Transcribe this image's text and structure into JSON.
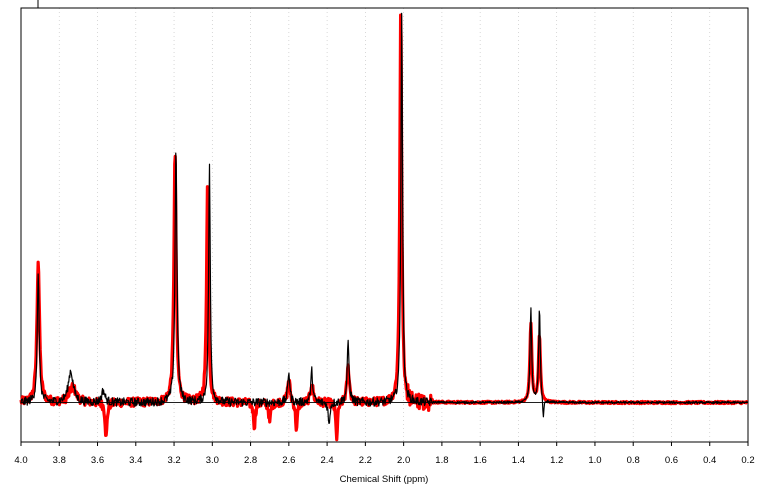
{
  "chart_data": {
    "type": "line",
    "title": "",
    "xlabel": "Chemical Shift (ppm)",
    "ylabel": "",
    "x_reversed": true,
    "xlim": [
      4.0,
      0.2
    ],
    "ylim": [
      -0.1,
      1.0
    ],
    "grid": "vertical dotted",
    "legend": "none",
    "x_ticks": [
      "4.0",
      "3.8",
      "3.6",
      "3.4",
      "3.2",
      "3.0",
      "2.8",
      "2.6",
      "2.4",
      "2.2",
      "2.0",
      "1.8",
      "1.6",
      "1.4",
      "1.2",
      "1.0",
      "0.8",
      "0.6",
      "0.4",
      "0.2"
    ],
    "series": [
      {
        "color": "#ff0000",
        "peaks": [
          {
            "x": 3.91,
            "y": 0.36,
            "w": 0.008
          },
          {
            "x": 3.73,
            "y": 0.04,
            "w": 0.02
          },
          {
            "x": 3.555,
            "y": -0.09,
            "w": 0.006
          },
          {
            "x": 3.195,
            "y": 0.63,
            "w": 0.007
          },
          {
            "x": 3.025,
            "y": 0.56,
            "w": 0.006
          },
          {
            "x": 2.78,
            "y": -0.06,
            "w": 0.006
          },
          {
            "x": 2.7,
            "y": -0.05,
            "w": 0.006
          },
          {
            "x": 2.6,
            "y": 0.06,
            "w": 0.008
          },
          {
            "x": 2.56,
            "y": -0.07,
            "w": 0.006
          },
          {
            "x": 2.48,
            "y": 0.05,
            "w": 0.008
          },
          {
            "x": 2.35,
            "y": -0.09,
            "w": 0.006
          },
          {
            "x": 2.29,
            "y": 0.09,
            "w": 0.008
          },
          {
            "x": 2.015,
            "y": 1.0,
            "w": 0.006
          },
          {
            "x": 1.335,
            "y": 0.2,
            "w": 0.006
          },
          {
            "x": 1.29,
            "y": 0.17,
            "w": 0.006
          }
        ]
      },
      {
        "color": "#000000",
        "peaks": [
          {
            "x": 3.91,
            "y": 0.32,
            "w": 0.006
          },
          {
            "x": 3.74,
            "y": 0.08,
            "w": 0.015
          },
          {
            "x": 3.57,
            "y": 0.03,
            "w": 0.01
          },
          {
            "x": 3.19,
            "y": 0.65,
            "w": 0.006
          },
          {
            "x": 3.015,
            "y": 0.61,
            "w": 0.005
          },
          {
            "x": 2.6,
            "y": 0.08,
            "w": 0.006
          },
          {
            "x": 2.48,
            "y": 0.08,
            "w": 0.006
          },
          {
            "x": 2.39,
            "y": -0.06,
            "w": 0.005
          },
          {
            "x": 2.29,
            "y": 0.15,
            "w": 0.006
          },
          {
            "x": 2.01,
            "y": 1.0,
            "w": 0.005
          },
          {
            "x": 1.335,
            "y": 0.24,
            "w": 0.005
          },
          {
            "x": 1.29,
            "y": 0.24,
            "w": 0.005
          },
          {
            "x": 1.27,
            "y": -0.05,
            "w": 0.004
          }
        ]
      }
    ]
  }
}
